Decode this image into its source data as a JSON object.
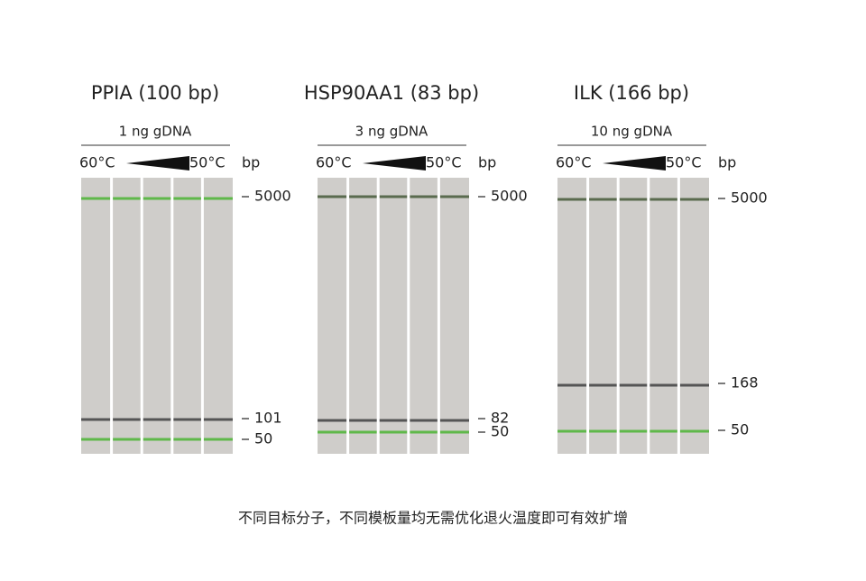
{
  "panels": [
    {
      "title": "PPIA (100 bp)",
      "template": "1 ng gDNA",
      "temp_start": "60°C",
      "temp_end": "50°C",
      "unit": "bp",
      "markers": [
        "5000",
        "101",
        "50"
      ]
    },
    {
      "title": "HSP90AA1 (83 bp)",
      "template": "3 ng gDNA",
      "temp_start": "60°C",
      "temp_end": "50°C",
      "unit": "bp",
      "markers": [
        "5000",
        "82",
        "50"
      ]
    },
    {
      "title": "ILK (166 bp)",
      "template": "10 ng gDNA",
      "temp_start": "60°C",
      "temp_end": "50°C",
      "unit": "bp",
      "markers": [
        "5000",
        "168",
        "50"
      ]
    }
  ],
  "caption": "不同目标分子，不同模板量均无需优化退火温度即可有效扩增"
}
